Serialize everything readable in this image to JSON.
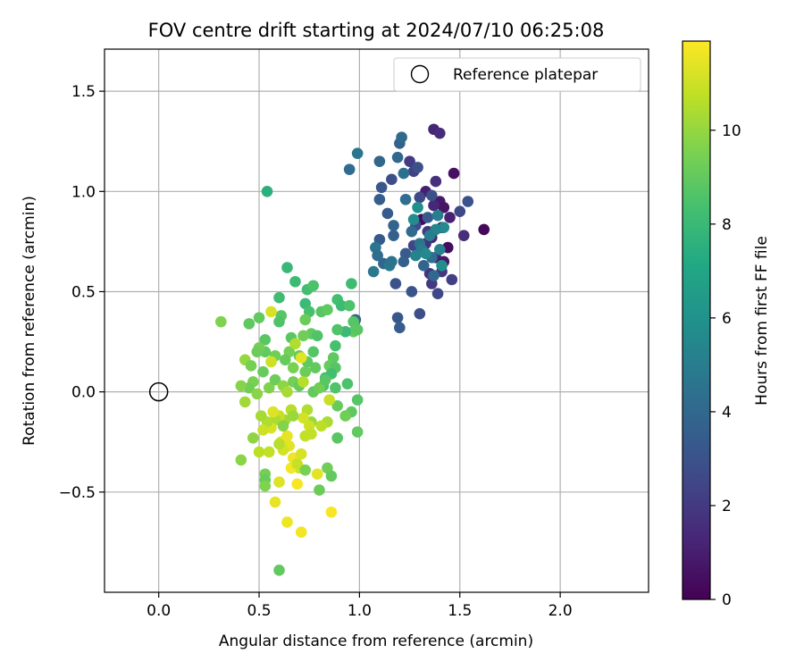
{
  "chart_data": {
    "type": "scatter",
    "title": "FOV centre drift starting at 2024/07/10 06:25:08",
    "xlabel": "Angular distance from reference (arcmin)",
    "ylabel": "Rotation from reference (arcmin)",
    "xlim": [
      -0.27,
      2.44
    ],
    "ylim": [
      -1.0,
      1.71
    ],
    "xticks": [
      0.0,
      0.5,
      1.0,
      1.5,
      2.0
    ],
    "xtick_labels": [
      "0.0",
      "0.5",
      "1.0",
      "1.5",
      "2.0"
    ],
    "yticks": [
      -0.5,
      0.0,
      0.5,
      1.0,
      1.5
    ],
    "ytick_labels": [
      "−0.5",
      "0.0",
      "0.5",
      "1.0",
      "1.5"
    ],
    "grid": true,
    "legend": {
      "position": "top-right",
      "entries": [
        {
          "label": "Reference platepar",
          "marker": "open-circle"
        }
      ]
    },
    "reference_point": {
      "x": 0.0,
      "y": 0.0
    },
    "colorbar": {
      "label": "Hours from first FF file",
      "colormap": "viridis",
      "range": [
        0,
        11.9
      ],
      "ticks": [
        0,
        2,
        4,
        6,
        8,
        10
      ],
      "tick_labels": [
        "0",
        "2",
        "4",
        "6",
        "8",
        "10"
      ]
    },
    "points": [
      {
        "x": 1.37,
        "y": 1.31,
        "h": 1.2
      },
      {
        "x": 1.4,
        "y": 1.29,
        "h": 1.5
      },
      {
        "x": 1.47,
        "y": 1.09,
        "h": 0.5
      },
      {
        "x": 1.38,
        "y": 1.05,
        "h": 1.6
      },
      {
        "x": 1.33,
        "y": 1.0,
        "h": 1.0
      },
      {
        "x": 1.4,
        "y": 0.95,
        "h": 0.8
      },
      {
        "x": 1.42,
        "y": 0.92,
        "h": 0.6
      },
      {
        "x": 1.37,
        "y": 0.93,
        "h": 1.3
      },
      {
        "x": 1.45,
        "y": 0.87,
        "h": 1.1
      },
      {
        "x": 1.41,
        "y": 0.82,
        "h": 0.9
      },
      {
        "x": 1.36,
        "y": 0.77,
        "h": 1.4
      },
      {
        "x": 1.44,
        "y": 0.72,
        "h": 0.4
      },
      {
        "x": 1.33,
        "y": 0.74,
        "h": 1.7
      },
      {
        "x": 1.38,
        "y": 0.67,
        "h": 1.2
      },
      {
        "x": 1.35,
        "y": 0.59,
        "h": 1.8
      },
      {
        "x": 1.41,
        "y": 0.6,
        "h": 1.9
      },
      {
        "x": 1.42,
        "y": 0.65,
        "h": 0.7
      },
      {
        "x": 1.31,
        "y": 0.86,
        "h": 0.3
      },
      {
        "x": 1.62,
        "y": 0.81,
        "h": 0.2
      },
      {
        "x": 1.52,
        "y": 0.78,
        "h": 1.6
      },
      {
        "x": 1.5,
        "y": 0.9,
        "h": 2.6
      },
      {
        "x": 1.54,
        "y": 0.95,
        "h": 3.0
      },
      {
        "x": 1.46,
        "y": 0.56,
        "h": 2.2
      },
      {
        "x": 1.39,
        "y": 0.49,
        "h": 2.5
      },
      {
        "x": 1.36,
        "y": 0.54,
        "h": 2.0
      },
      {
        "x": 1.3,
        "y": 0.39,
        "h": 2.8
      },
      {
        "x": 1.26,
        "y": 0.5,
        "h": 3.1
      },
      {
        "x": 1.27,
        "y": 0.73,
        "h": 2.4
      },
      {
        "x": 1.25,
        "y": 1.15,
        "h": 2.1
      },
      {
        "x": 1.27,
        "y": 1.1,
        "h": 2.3
      },
      {
        "x": 1.3,
        "y": 0.97,
        "h": 2.6
      },
      {
        "x": 1.36,
        "y": 0.98,
        "h": 2.9
      },
      {
        "x": 1.34,
        "y": 0.87,
        "h": 3.3
      },
      {
        "x": 1.28,
        "y": 0.83,
        "h": 2.7
      },
      {
        "x": 1.34,
        "y": 0.8,
        "h": 2.0
      },
      {
        "x": 1.23,
        "y": 0.69,
        "h": 3.4
      },
      {
        "x": 1.22,
        "y": 0.65,
        "h": 3.6
      },
      {
        "x": 1.19,
        "y": 0.37,
        "h": 3.2
      },
      {
        "x": 1.2,
        "y": 0.32,
        "h": 3.5
      },
      {
        "x": 1.18,
        "y": 0.54,
        "h": 3.0
      },
      {
        "x": 1.14,
        "y": 0.89,
        "h": 3.4
      },
      {
        "x": 1.1,
        "y": 0.96,
        "h": 3.5
      },
      {
        "x": 1.1,
        "y": 1.15,
        "h": 3.9
      },
      {
        "x": 1.11,
        "y": 1.02,
        "h": 3.2
      },
      {
        "x": 1.16,
        "y": 1.06,
        "h": 2.8
      },
      {
        "x": 1.19,
        "y": 1.17,
        "h": 4.0
      },
      {
        "x": 1.2,
        "y": 1.24,
        "h": 3.7
      },
      {
        "x": 1.21,
        "y": 1.27,
        "h": 4.1
      },
      {
        "x": 1.22,
        "y": 1.09,
        "h": 4.4
      },
      {
        "x": 1.29,
        "y": 1.12,
        "h": 2.9
      },
      {
        "x": 1.23,
        "y": 0.96,
        "h": 4.3
      },
      {
        "x": 1.17,
        "y": 0.83,
        "h": 3.8
      },
      {
        "x": 1.17,
        "y": 0.78,
        "h": 3.6
      },
      {
        "x": 1.1,
        "y": 0.76,
        "h": 3.3
      },
      {
        "x": 1.08,
        "y": 0.72,
        "h": 4.6
      },
      {
        "x": 1.09,
        "y": 0.68,
        "h": 4.2
      },
      {
        "x": 1.12,
        "y": 0.64,
        "h": 3.9
      },
      {
        "x": 1.15,
        "y": 0.63,
        "h": 4.7
      },
      {
        "x": 1.16,
        "y": 0.65,
        "h": 4.5
      },
      {
        "x": 1.07,
        "y": 0.6,
        "h": 4.8
      },
      {
        "x": 1.26,
        "y": 0.8,
        "h": 4.1
      },
      {
        "x": 1.3,
        "y": 0.74,
        "h": 4.5
      },
      {
        "x": 1.31,
        "y": 0.71,
        "h": 4.9
      },
      {
        "x": 1.32,
        "y": 0.63,
        "h": 3.8
      },
      {
        "x": 1.36,
        "y": 0.67,
        "h": 4.4
      },
      {
        "x": 1.37,
        "y": 0.58,
        "h": 4.0
      },
      {
        "x": 1.39,
        "y": 0.88,
        "h": 5.0
      },
      {
        "x": 1.42,
        "y": 0.82,
        "h": 5.6
      },
      {
        "x": 1.38,
        "y": 0.81,
        "h": 5.4
      },
      {
        "x": 1.4,
        "y": 0.71,
        "h": 5.2
      },
      {
        "x": 1.41,
        "y": 0.63,
        "h": 5.8
      },
      {
        "x": 1.35,
        "y": 0.78,
        "h": 5.1
      },
      {
        "x": 1.33,
        "y": 0.69,
        "h": 5.5
      },
      {
        "x": 1.28,
        "y": 0.68,
        "h": 5.3
      },
      {
        "x": 1.27,
        "y": 0.86,
        "h": 5.7
      },
      {
        "x": 1.29,
        "y": 0.92,
        "h": 5.9
      },
      {
        "x": 0.95,
        "y": 1.11,
        "h": 4.2
      },
      {
        "x": 0.99,
        "y": 1.19,
        "h": 4.6
      },
      {
        "x": 0.98,
        "y": 0.36,
        "h": 3.9
      },
      {
        "x": 0.54,
        "y": 1.0,
        "h": 7.5
      },
      {
        "x": 0.64,
        "y": 0.62,
        "h": 7.9
      },
      {
        "x": 0.68,
        "y": 0.55,
        "h": 8.1
      },
      {
        "x": 0.6,
        "y": 0.47,
        "h": 8.2
      },
      {
        "x": 0.74,
        "y": 0.51,
        "h": 8.3
      },
      {
        "x": 0.77,
        "y": 0.53,
        "h": 8.5
      },
      {
        "x": 0.73,
        "y": 0.44,
        "h": 8.0
      },
      {
        "x": 0.75,
        "y": 0.4,
        "h": 8.4
      },
      {
        "x": 0.61,
        "y": 0.38,
        "h": 8.8
      },
      {
        "x": 0.6,
        "y": 0.35,
        "h": 8.6
      },
      {
        "x": 0.81,
        "y": 0.4,
        "h": 8.7
      },
      {
        "x": 0.84,
        "y": 0.41,
        "h": 8.9
      },
      {
        "x": 0.89,
        "y": 0.46,
        "h": 8.3
      },
      {
        "x": 0.91,
        "y": 0.43,
        "h": 8.1
      },
      {
        "x": 0.95,
        "y": 0.43,
        "h": 8.5
      },
      {
        "x": 0.97,
        "y": 0.35,
        "h": 8.7
      },
      {
        "x": 0.97,
        "y": 0.3,
        "h": 9.0
      },
      {
        "x": 0.99,
        "y": 0.31,
        "h": 8.8
      },
      {
        "x": 0.96,
        "y": 0.54,
        "h": 8.2
      },
      {
        "x": 0.93,
        "y": 0.3,
        "h": 8.0
      },
      {
        "x": 0.89,
        "y": 0.31,
        "h": 8.6
      },
      {
        "x": 0.88,
        "y": 0.23,
        "h": 8.4
      },
      {
        "x": 0.87,
        "y": 0.17,
        "h": 8.9
      },
      {
        "x": 0.85,
        "y": 0.13,
        "h": 9.1
      },
      {
        "x": 0.88,
        "y": 0.12,
        "h": 8.7
      },
      {
        "x": 0.86,
        "y": 0.09,
        "h": 8.3
      },
      {
        "x": 0.83,
        "y": 0.07,
        "h": 8.2
      },
      {
        "x": 0.82,
        "y": 0.03,
        "h": 8.5
      },
      {
        "x": 0.73,
        "y": 0.36,
        "h": 9.2
      },
      {
        "x": 0.76,
        "y": 0.29,
        "h": 9.0
      },
      {
        "x": 0.79,
        "y": 0.28,
        "h": 8.6
      },
      {
        "x": 0.72,
        "y": 0.28,
        "h": 9.3
      },
      {
        "x": 0.66,
        "y": 0.27,
        "h": 8.8
      },
      {
        "x": 0.65,
        "y": 0.2,
        "h": 9.4
      },
      {
        "x": 0.7,
        "y": 0.18,
        "h": 9.1
      },
      {
        "x": 0.74,
        "y": 0.15,
        "h": 8.9
      },
      {
        "x": 0.77,
        "y": 0.2,
        "h": 8.7
      },
      {
        "x": 0.78,
        "y": 0.12,
        "h": 9.0
      },
      {
        "x": 0.73,
        "y": 0.1,
        "h": 9.2
      },
      {
        "x": 0.67,
        "y": 0.12,
        "h": 9.5
      },
      {
        "x": 0.63,
        "y": 0.16,
        "h": 9.1
      },
      {
        "x": 0.58,
        "y": 0.18,
        "h": 9.3
      },
      {
        "x": 0.53,
        "y": 0.2,
        "h": 9.0
      },
      {
        "x": 0.53,
        "y": 0.26,
        "h": 8.8
      },
      {
        "x": 0.5,
        "y": 0.22,
        "h": 9.4
      },
      {
        "x": 0.49,
        "y": 0.2,
        "h": 9.2
      },
      {
        "x": 0.5,
        "y": 0.37,
        "h": 9.0
      },
      {
        "x": 0.45,
        "y": 0.34,
        "h": 8.9
      },
      {
        "x": 0.31,
        "y": 0.35,
        "h": 9.6
      },
      {
        "x": 0.43,
        "y": 0.16,
        "h": 10.0
      },
      {
        "x": 0.46,
        "y": 0.13,
        "h": 9.4
      },
      {
        "x": 0.52,
        "y": 0.1,
        "h": 9.1
      },
      {
        "x": 0.47,
        "y": 0.05,
        "h": 9.5
      },
      {
        "x": 0.45,
        "y": 0.02,
        "h": 9.3
      },
      {
        "x": 0.41,
        "y": 0.03,
        "h": 9.7
      },
      {
        "x": 0.43,
        "y": -0.05,
        "h": 10.2
      },
      {
        "x": 0.49,
        "y": -0.01,
        "h": 9.8
      },
      {
        "x": 0.55,
        "y": 0.02,
        "h": 9.6
      },
      {
        "x": 0.58,
        "y": 0.06,
        "h": 9.2
      },
      {
        "x": 0.62,
        "y": 0.03,
        "h": 9.9
      },
      {
        "x": 0.64,
        "y": 0.0,
        "h": 10.3
      },
      {
        "x": 0.67,
        "y": 0.05,
        "h": 9.4
      },
      {
        "x": 0.7,
        "y": 0.03,
        "h": 9.1
      },
      {
        "x": 0.72,
        "y": 0.05,
        "h": 10.6
      },
      {
        "x": 0.77,
        "y": 0.0,
        "h": 9.0
      },
      {
        "x": 0.8,
        "y": 0.02,
        "h": 9.3
      },
      {
        "x": 0.83,
        "y": 0.06,
        "h": 8.8
      },
      {
        "x": 0.88,
        "y": 0.02,
        "h": 8.6
      },
      {
        "x": 0.94,
        "y": 0.04,
        "h": 8.5
      },
      {
        "x": 0.99,
        "y": -0.04,
        "h": 8.7
      },
      {
        "x": 0.96,
        "y": -0.1,
        "h": 8.9
      },
      {
        "x": 0.99,
        "y": -0.2,
        "h": 9.0
      },
      {
        "x": 0.93,
        "y": -0.12,
        "h": 9.3
      },
      {
        "x": 0.89,
        "y": -0.07,
        "h": 9.1
      },
      {
        "x": 0.89,
        "y": -0.23,
        "h": 8.8
      },
      {
        "x": 0.85,
        "y": -0.04,
        "h": 10.9
      },
      {
        "x": 0.84,
        "y": -0.15,
        "h": 10.4
      },
      {
        "x": 0.81,
        "y": -0.17,
        "h": 10.7
      },
      {
        "x": 0.76,
        "y": -0.15,
        "h": 10.1
      },
      {
        "x": 0.74,
        "y": -0.09,
        "h": 10.5
      },
      {
        "x": 0.75,
        "y": -0.17,
        "h": 11.0
      },
      {
        "x": 0.76,
        "y": -0.21,
        "h": 10.8
      },
      {
        "x": 0.72,
        "y": -0.13,
        "h": 11.1
      },
      {
        "x": 0.66,
        "y": -0.09,
        "h": 10.6
      },
      {
        "x": 0.63,
        "y": -0.14,
        "h": 10.2
      },
      {
        "x": 0.6,
        "y": -0.12,
        "h": 10.9
      },
      {
        "x": 0.58,
        "y": -0.14,
        "h": 10.4
      },
      {
        "x": 0.56,
        "y": -0.18,
        "h": 11.2
      },
      {
        "x": 0.54,
        "y": -0.15,
        "h": 10.5
      },
      {
        "x": 0.51,
        "y": -0.12,
        "h": 10.3
      },
      {
        "x": 0.52,
        "y": -0.19,
        "h": 11.0
      },
      {
        "x": 0.47,
        "y": -0.23,
        "h": 9.9
      },
      {
        "x": 0.55,
        "y": -0.3,
        "h": 10.8
      },
      {
        "x": 0.5,
        "y": -0.3,
        "h": 10.7
      },
      {
        "x": 0.61,
        "y": -0.25,
        "h": 11.3
      },
      {
        "x": 0.64,
        "y": -0.22,
        "h": 11.5
      },
      {
        "x": 0.65,
        "y": -0.27,
        "h": 11.4
      },
      {
        "x": 0.62,
        "y": -0.29,
        "h": 11.1
      },
      {
        "x": 0.67,
        "y": -0.33,
        "h": 11.6
      },
      {
        "x": 0.71,
        "y": -0.31,
        "h": 11.2
      },
      {
        "x": 0.7,
        "y": -0.38,
        "h": 11.0
      },
      {
        "x": 0.66,
        "y": -0.38,
        "h": 11.7
      },
      {
        "x": 0.69,
        "y": -0.36,
        "h": 10.9
      },
      {
        "x": 0.6,
        "y": -0.45,
        "h": 11.3
      },
      {
        "x": 0.69,
        "y": -0.46,
        "h": 11.8
      },
      {
        "x": 0.79,
        "y": -0.41,
        "h": 11.4
      },
      {
        "x": 0.73,
        "y": -0.39,
        "h": 9.5
      },
      {
        "x": 0.84,
        "y": -0.38,
        "h": 9.3
      },
      {
        "x": 0.86,
        "y": -0.42,
        "h": 9.0
      },
      {
        "x": 0.8,
        "y": -0.49,
        "h": 9.2
      },
      {
        "x": 0.53,
        "y": -0.41,
        "h": 9.4
      },
      {
        "x": 0.53,
        "y": -0.44,
        "h": 9.1
      },
      {
        "x": 0.53,
        "y": -0.47,
        "h": 9.6
      },
      {
        "x": 0.41,
        "y": -0.34,
        "h": 9.8
      },
      {
        "x": 0.58,
        "y": -0.55,
        "h": 11.5
      },
      {
        "x": 0.64,
        "y": -0.65,
        "h": 11.6
      },
      {
        "x": 0.71,
        "y": -0.7,
        "h": 11.7
      },
      {
        "x": 0.86,
        "y": -0.6,
        "h": 11.8
      },
      {
        "x": 0.6,
        "y": -0.89,
        "h": 9.0
      },
      {
        "x": 0.56,
        "y": 0.4,
        "h": 11.2
      },
      {
        "x": 0.56,
        "y": 0.15,
        "h": 11.0
      },
      {
        "x": 0.71,
        "y": 0.17,
        "h": 11.4
      },
      {
        "x": 0.68,
        "y": 0.24,
        "h": 10.5
      },
      {
        "x": 0.57,
        "y": -0.1,
        "h": 11.3
      },
      {
        "x": 0.67,
        "y": -0.12,
        "h": 10.1
      },
      {
        "x": 0.6,
        "y": -0.26,
        "h": 10.6
      },
      {
        "x": 0.73,
        "y": -0.22,
        "h": 10.8
      },
      {
        "x": 0.62,
        "y": -0.17,
        "h": 9.7
      }
    ]
  }
}
